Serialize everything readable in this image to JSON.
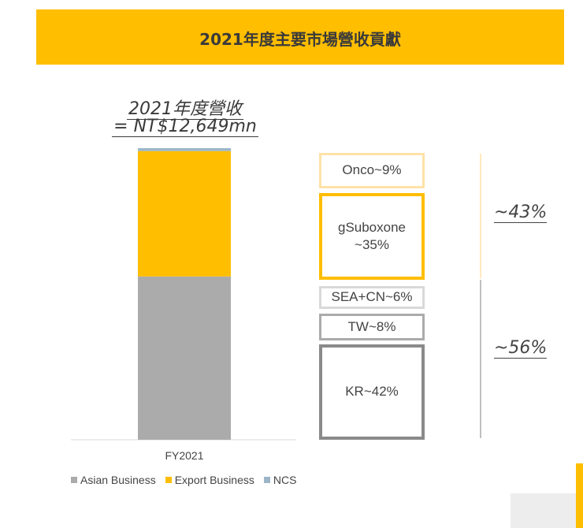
{
  "header": {
    "title": "2021年度主要市場營收貢獻"
  },
  "revenue": {
    "line1": "2021年度營收",
    "line2": "= NT$12,649mn"
  },
  "chart_data": {
    "type": "bar",
    "stacked": true,
    "categories": [
      "FY2021"
    ],
    "series": [
      {
        "name": "Asian Business",
        "values": [
          56
        ],
        "color": "#ABABAB"
      },
      {
        "name": "Export Business",
        "values": [
          43
        ],
        "color": "#FFBE00"
      },
      {
        "name": "NCS",
        "values": [
          1
        ],
        "color": "#9CB6C8"
      }
    ],
    "ylim": [
      0,
      100
    ],
    "grid": false,
    "legend": "bottom"
  },
  "segments": [
    {
      "label": "Onco~9%",
      "border": "#FFE2A8"
    },
    {
      "label": "gSuboxone\n~35%",
      "border": "#FFBE00"
    },
    {
      "label": "SEA+CN~6%",
      "border": "#D9D9D9"
    },
    {
      "label": "TW~8%",
      "border": "#ABABAB"
    },
    {
      "label": "KR~42%",
      "border": "#8A8A8A"
    }
  ],
  "groups": [
    {
      "label": "~43%",
      "bracket_color": "#FFE2A8"
    },
    {
      "label": "~56%",
      "bracket_color": "#ABABAB"
    }
  ]
}
